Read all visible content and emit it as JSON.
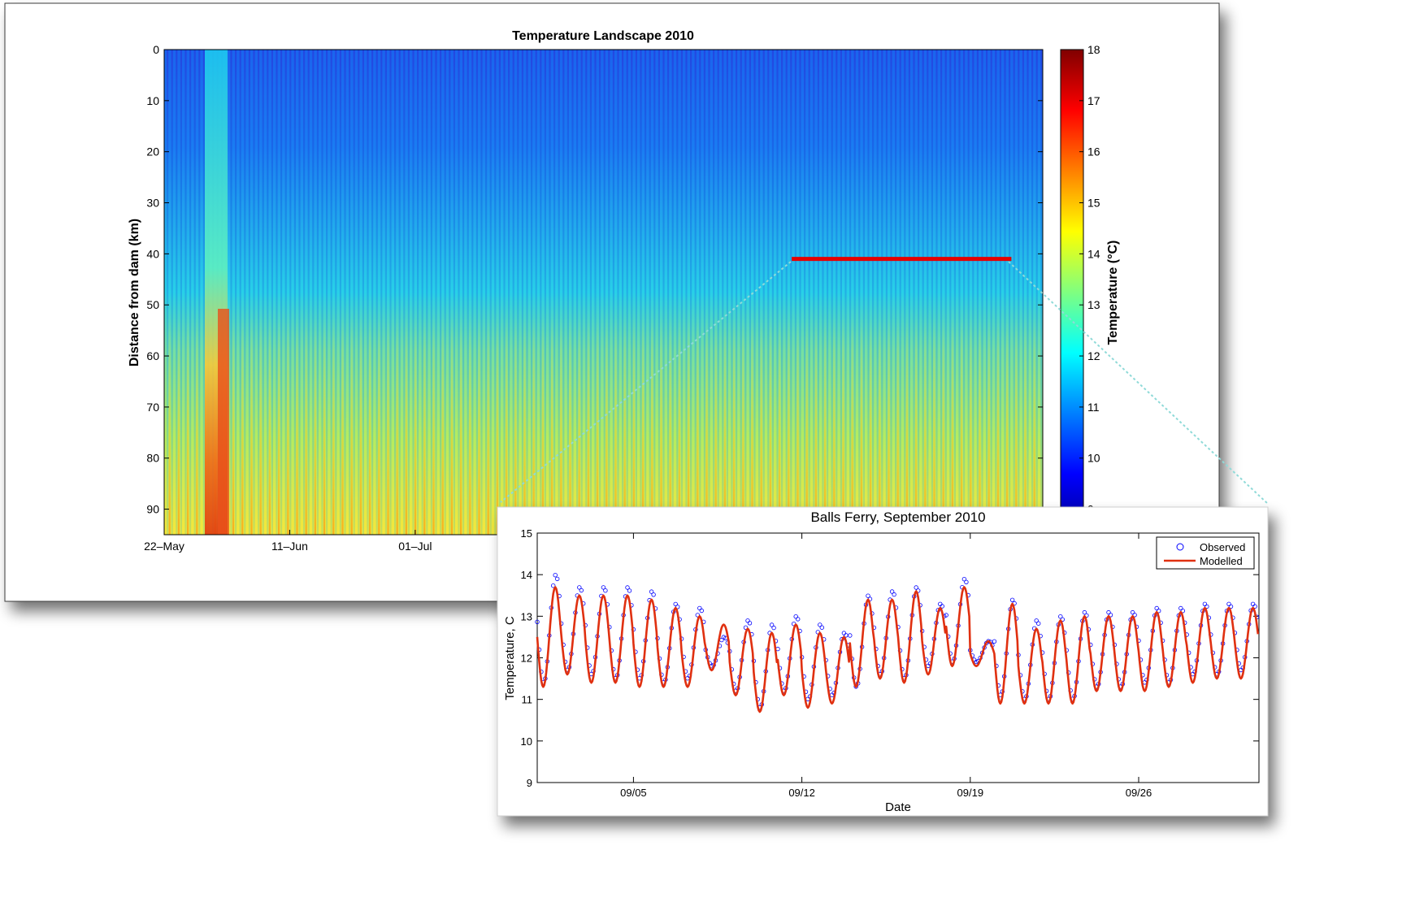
{
  "chart_data": [
    {
      "type": "heatmap",
      "title": "Temperature Landscape 2010",
      "xlabel": "",
      "ylabel": "Distance from dam (km)",
      "y_ticks": [
        0,
        10,
        20,
        30,
        40,
        50,
        60,
        70,
        80,
        90
      ],
      "ylim": [
        0,
        95
      ],
      "y_reversed": true,
      "x_tick_labels": [
        "22–May",
        "11–Jun",
        "01–Jul"
      ],
      "x_tick_days": [
        0,
        20,
        40
      ],
      "x_range_days": [
        0,
        140
      ],
      "colorbar": {
        "label": "Temperature (°C)",
        "ticks": [
          9,
          10,
          11,
          12,
          13,
          14,
          15,
          16,
          17,
          18
        ],
        "range": [
          8.5,
          18
        ],
        "colormap": "jet"
      },
      "highlight": {
        "color": "#e60000",
        "distance_km": 41,
        "from_day": 100,
        "to_day": 135
      }
    },
    {
      "type": "line",
      "title": "Balls Ferry, September 2010",
      "xlabel": "Date",
      "ylabel": "Temperature, C",
      "ylim": [
        9,
        15
      ],
      "y_ticks": [
        9,
        10,
        11,
        12,
        13,
        14,
        15
      ],
      "x_tick_labels": [
        "09/05",
        "09/12",
        "09/19",
        "09/26"
      ],
      "x_tick_days": [
        5,
        12,
        19,
        26
      ],
      "x_range_days": [
        1,
        31
      ],
      "legend_position": "top-right",
      "series": [
        {
          "name": "Observed",
          "style": "markers",
          "color": "#0000ff",
          "daily_min": [
            11.4,
            11.7,
            11.6,
            11.5,
            11.5,
            11.4,
            11.5,
            11.8,
            11.2,
            10.8,
            11.2,
            11.0,
            11.1,
            11.3,
            11.6,
            11.5,
            11.8,
            11.9,
            11.9,
            11.1,
            11.0,
            11.0,
            11.0,
            11.3,
            11.3,
            11.4,
            11.4,
            11.6,
            11.6,
            11.7
          ],
          "daily_max": [
            14.0,
            13.7,
            13.7,
            13.7,
            13.6,
            13.3,
            13.2,
            12.5,
            12.9,
            12.8,
            13.0,
            12.8,
            12.6,
            13.5,
            13.6,
            13.7,
            13.3,
            13.9,
            12.4,
            13.4,
            12.9,
            13.0,
            13.1,
            13.1,
            13.1,
            13.2,
            13.2,
            13.3,
            13.3,
            13.3
          ]
        },
        {
          "name": "Modelled",
          "style": "line",
          "color": "#e03010",
          "daily_min": [
            11.3,
            11.6,
            11.4,
            11.4,
            11.3,
            11.3,
            11.3,
            11.7,
            11.1,
            10.7,
            11.1,
            10.8,
            10.9,
            11.3,
            11.5,
            11.4,
            11.6,
            11.8,
            11.8,
            10.9,
            10.9,
            10.9,
            10.9,
            11.2,
            11.2,
            11.2,
            11.3,
            11.4,
            11.5,
            11.5
          ],
          "daily_max": [
            13.7,
            13.5,
            13.5,
            13.5,
            13.4,
            13.2,
            13.0,
            12.8,
            12.7,
            12.6,
            12.8,
            12.6,
            12.5,
            13.4,
            13.4,
            13.6,
            13.2,
            13.7,
            12.4,
            13.3,
            12.7,
            12.9,
            13.0,
            13.0,
            13.0,
            13.1,
            13.1,
            13.2,
            13.2,
            13.2
          ]
        }
      ]
    }
  ]
}
